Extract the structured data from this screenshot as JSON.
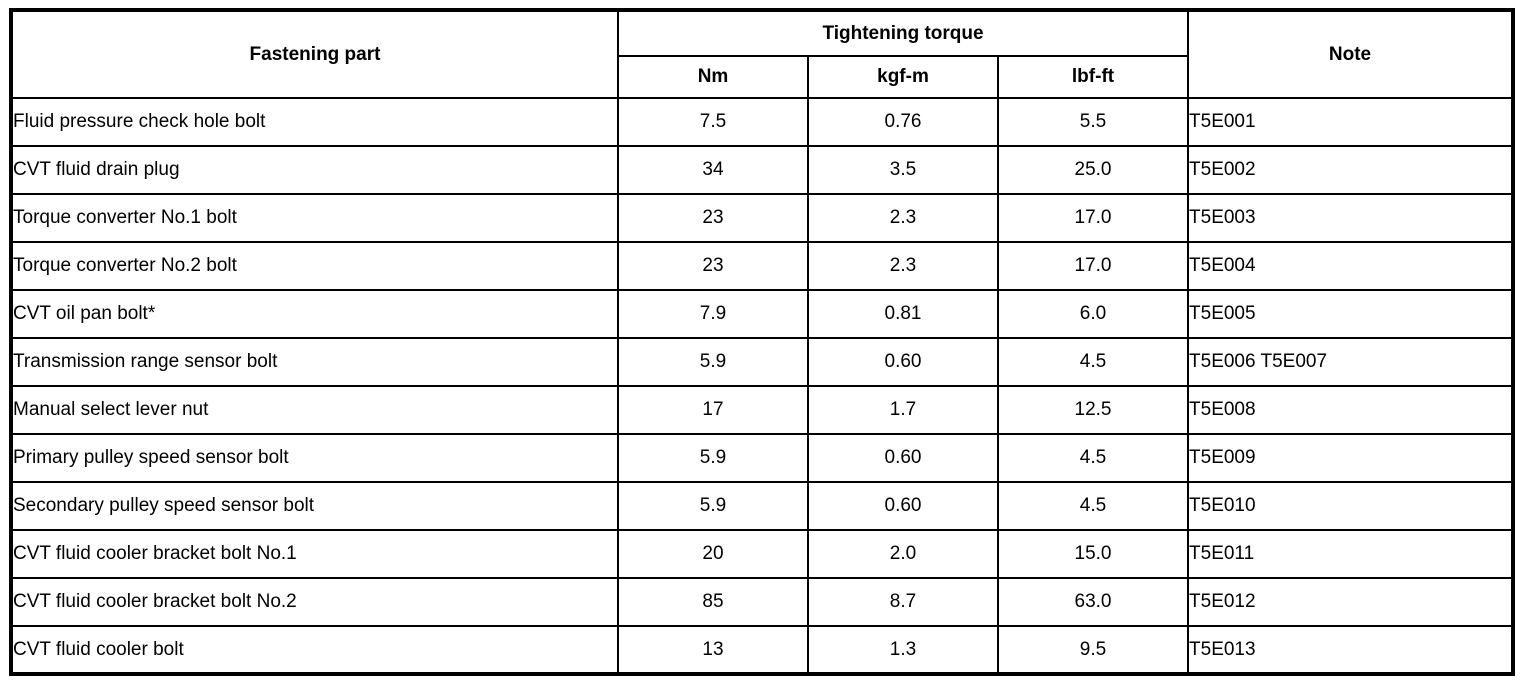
{
  "table": {
    "headers": {
      "fastening_part": "Fastening part",
      "tightening_torque": "Tightening torque",
      "units": [
        "Nm",
        "kgf-m",
        "lbf-ft"
      ],
      "note": "Note"
    },
    "rows": [
      {
        "part": "Fluid pressure check hole bolt",
        "nm": "7.5",
        "kgf_m": "0.76",
        "lbf_ft": "5.5",
        "note": "T5E001"
      },
      {
        "part": "CVT fluid drain plug",
        "nm": "34",
        "kgf_m": "3.5",
        "lbf_ft": "25.0",
        "note": "T5E002"
      },
      {
        "part": "Torque converter No.1 bolt",
        "nm": "23",
        "kgf_m": "2.3",
        "lbf_ft": "17.0",
        "note": "T5E003"
      },
      {
        "part": "Torque converter No.2 bolt",
        "nm": "23",
        "kgf_m": "2.3",
        "lbf_ft": "17.0",
        "note": "T5E004"
      },
      {
        "part": "CVT oil pan bolt*",
        "nm": "7.9",
        "kgf_m": "0.81",
        "lbf_ft": "6.0",
        "note": "T5E005"
      },
      {
        "part": "Transmission range sensor bolt",
        "nm": "5.9",
        "kgf_m": "0.60",
        "lbf_ft": "4.5",
        "note": "T5E006 T5E007"
      },
      {
        "part": "Manual select lever nut",
        "nm": "17",
        "kgf_m": "1.7",
        "lbf_ft": "12.5",
        "note": "T5E008"
      },
      {
        "part": "Primary pulley speed sensor bolt",
        "nm": "5.9",
        "kgf_m": "0.60",
        "lbf_ft": "4.5",
        "note": "T5E009"
      },
      {
        "part": "Secondary pulley speed sensor bolt",
        "nm": "5.9",
        "kgf_m": "0.60",
        "lbf_ft": "4.5",
        "note": "T5E010"
      },
      {
        "part": "CVT fluid cooler bracket bolt No.1",
        "nm": "20",
        "kgf_m": "2.0",
        "lbf_ft": "15.0",
        "note": "T5E011"
      },
      {
        "part": "CVT fluid cooler bracket bolt No.2",
        "nm": "85",
        "kgf_m": "8.7",
        "lbf_ft": "63.0",
        "note": "T5E012"
      },
      {
        "part": "CVT fluid cooler bolt",
        "nm": "13",
        "kgf_m": "1.3",
        "lbf_ft": "9.5",
        "note": "T5E013"
      }
    ],
    "colors": {
      "border": "#000000",
      "background": "#ffffff",
      "text": "#000000"
    }
  }
}
